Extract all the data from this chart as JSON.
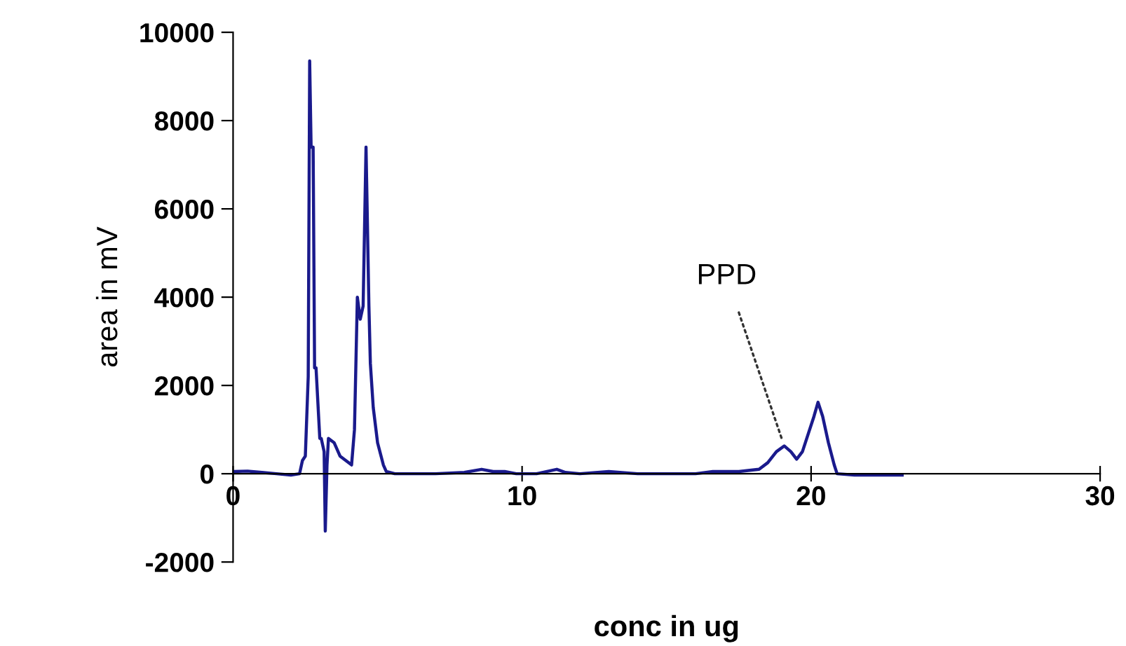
{
  "chart_data": {
    "type": "line",
    "xlabel": "conc in ug",
    "ylabel": "area in mV",
    "xlim": [
      0,
      30
    ],
    "ylim": [
      -2000,
      10000
    ],
    "xticks": [
      0,
      10,
      20,
      30
    ],
    "yticks": [
      -2000,
      0,
      2000,
      4000,
      6000,
      8000,
      10000
    ],
    "grid": false,
    "legend": false,
    "marker": "none",
    "line_style": "solid",
    "annotations": [
      {
        "text": "PPD",
        "x": 19.07,
        "y": 630
      }
    ],
    "series": [
      {
        "color": "#1a1a8c",
        "x": [
          0,
          0.5,
          1.0,
          1.5,
          2.0,
          2.3,
          2.4,
          2.5,
          2.6,
          2.65,
          2.7,
          2.77,
          2.82,
          2.87,
          3.0,
          3.05,
          3.15,
          3.19,
          3.25,
          3.3,
          3.5,
          3.7,
          3.9,
          4.1,
          4.2,
          4.3,
          4.4,
          4.5,
          4.6,
          4.7,
          4.75,
          4.85,
          5.0,
          5.2,
          5.3,
          5.6,
          6.0,
          7.0,
          8.0,
          8.6,
          9.0,
          9.4,
          9.8,
          10.5,
          11.2,
          11.5,
          12.0,
          13.0,
          14.0,
          15.0,
          16.0,
          16.6,
          17.5,
          18.2,
          18.5,
          18.8,
          19.07,
          19.3,
          19.5,
          19.7,
          19.9,
          20.1,
          20.24,
          20.4,
          20.6,
          20.8,
          20.9,
          21.5,
          22.0,
          23.15
        ],
        "values": [
          50,
          60,
          30,
          0,
          -30,
          0,
          300,
          400,
          2200,
          9350,
          7400,
          7400,
          2400,
          2400,
          800,
          800,
          500,
          -1300,
          200,
          800,
          700,
          400,
          300,
          200,
          1000,
          4000,
          3500,
          3800,
          7400,
          3800,
          2500,
          1500,
          700,
          200,
          50,
          0,
          0,
          0,
          30,
          100,
          50,
          50,
          0,
          0,
          100,
          30,
          0,
          50,
          0,
          0,
          0,
          50,
          50,
          100,
          250,
          500,
          630,
          500,
          330,
          500,
          900,
          1300,
          1620,
          1300,
          700,
          200,
          0,
          -30,
          -30,
          -30
        ]
      }
    ]
  }
}
